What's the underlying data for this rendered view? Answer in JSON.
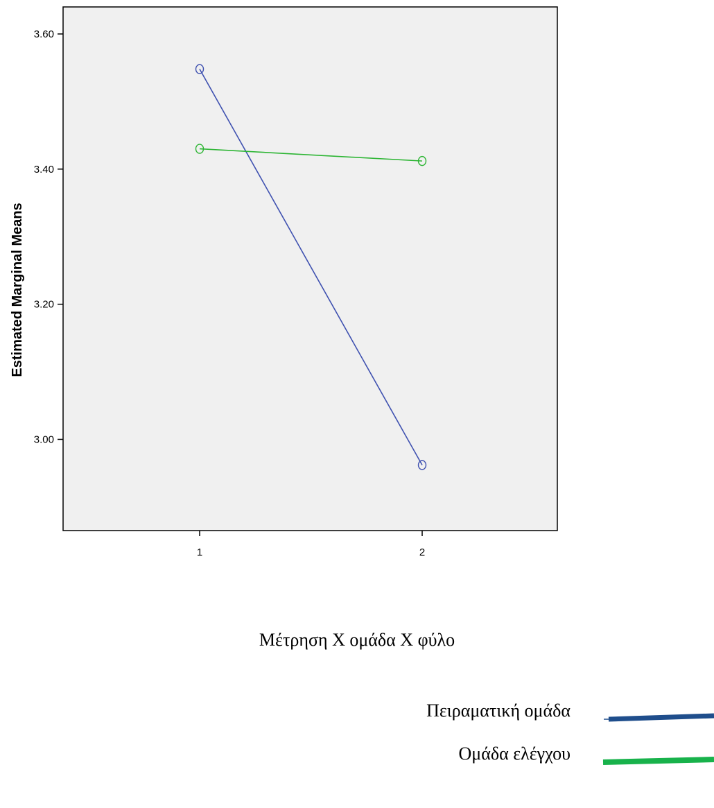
{
  "chart_data": {
    "type": "line",
    "title": "",
    "xlabel": "",
    "ylabel": "Estimated Marginal Means",
    "categories": [
      "1",
      "2"
    ],
    "ylim": [
      2.865,
      3.64
    ],
    "yticks": [
      "3.00",
      "3.20",
      "3.40",
      "3.60"
    ],
    "grid": false,
    "background": "#f0f0f0",
    "series": [
      {
        "name": "",
        "color": "#3f51b0",
        "values": [
          3.548,
          2.962
        ]
      },
      {
        "name": "",
        "color": "#2db534",
        "values": [
          3.43,
          3.412
        ]
      }
    ]
  },
  "caption": "Μέτρηση Χ ομάδα Χ φύλο",
  "legend": [
    {
      "label": "Πειραματική ομάδα",
      "color": "#1f4e8c"
    },
    {
      "label": "Ομάδα ελέγχου",
      "color": "#18b24b"
    }
  ]
}
